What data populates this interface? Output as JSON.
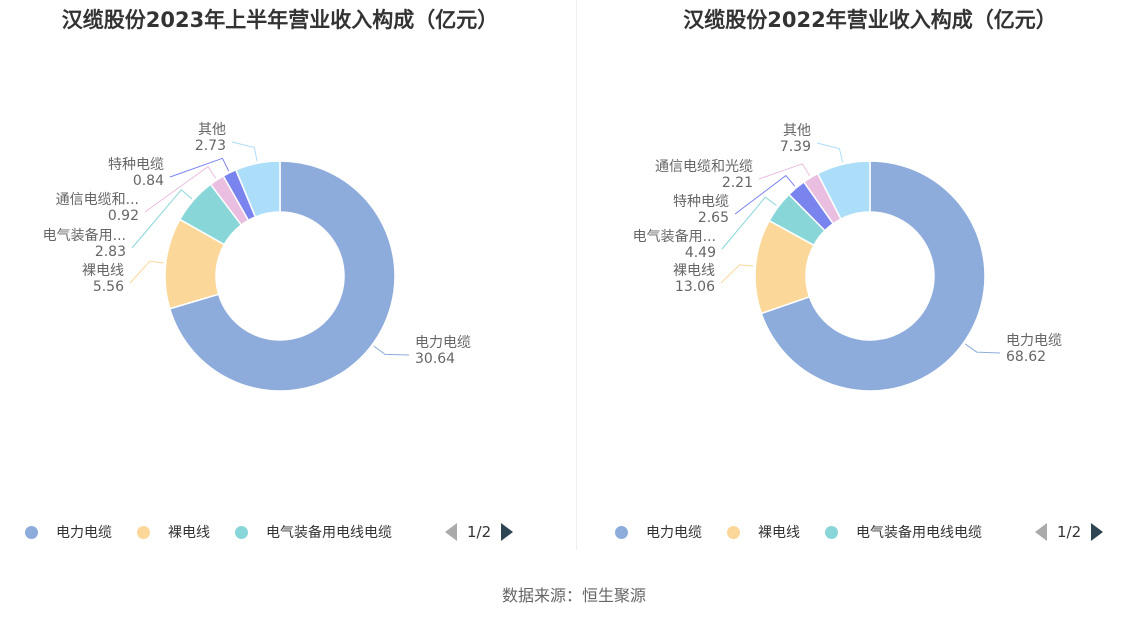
{
  "source": "数据来源：恒生聚源",
  "chart_data": [
    {
      "type": "pie",
      "title": "汉缆股份2023年上半年营业收入构成（亿元）",
      "slices": [
        {
          "label": "电力电缆",
          "value": 30.64,
          "color": "#8eacdb"
        },
        {
          "label": "裸电线",
          "value": 5.56,
          "color": "#fbd89a"
        },
        {
          "label": "电气装备用...",
          "value": 2.83,
          "color": "#89d6d9"
        },
        {
          "label": "通信电缆和...",
          "value": 0.92,
          "color": "#e9bee0"
        },
        {
          "label": "特种电缆",
          "value": 0.84,
          "color": "#7a84ee"
        },
        {
          "label": "其他",
          "value": 2.73,
          "color": "#acdefa"
        }
      ],
      "legend": {
        "items": [
          {
            "label": "电力电缆",
            "color": "#8eacdb"
          },
          {
            "label": "裸电线",
            "color": "#fbd89a"
          },
          {
            "label": "电气装备用电线电缆",
            "color": "#89d6d9"
          }
        ],
        "page": "1/2",
        "position": "bottom"
      }
    },
    {
      "type": "pie",
      "title": "汉缆股份2022年营业收入构成（亿元）",
      "slices": [
        {
          "label": "电力电缆",
          "value": 68.62,
          "color": "#8eacdb"
        },
        {
          "label": "裸电线",
          "value": 13.06,
          "color": "#fbd89a"
        },
        {
          "label": "电气装备用...",
          "value": 4.49,
          "color": "#89d6d9"
        },
        {
          "label": "特种电缆",
          "value": 2.65,
          "color": "#7a84ee"
        },
        {
          "label": "通信电缆和光缆",
          "value": 2.21,
          "color": "#e9bee0"
        },
        {
          "label": "其他",
          "value": 7.39,
          "color": "#acdefa"
        }
      ],
      "legend": {
        "items": [
          {
            "label": "电力电缆",
            "color": "#8eacdb"
          },
          {
            "label": "裸电线",
            "color": "#fbd89a"
          },
          {
            "label": "电气装备用电线电缆",
            "color": "#89d6d9"
          }
        ],
        "page": "1/2",
        "position": "bottom"
      }
    }
  ]
}
